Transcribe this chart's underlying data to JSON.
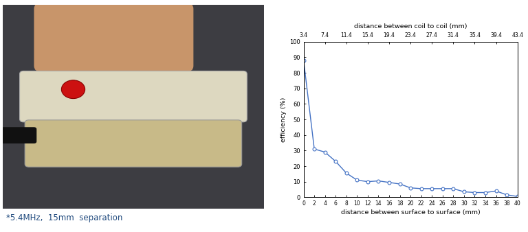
{
  "x_surface": [
    0,
    2,
    4,
    6,
    8,
    10,
    12,
    14,
    16,
    18,
    20,
    22,
    24,
    26,
    28,
    30,
    32,
    34,
    36,
    38,
    40
  ],
  "y_efficiency": [
    88,
    31,
    29,
    23,
    15.5,
    11,
    10,
    10.5,
    9.5,
    8.5,
    6,
    5.5,
    5.5,
    5.5,
    5.5,
    3.5,
    3,
    3,
    4,
    1.5,
    0.5
  ],
  "x_coil_labels": [
    3.4,
    7.4,
    11.4,
    15.4,
    19.4,
    23.4,
    27.4,
    31.4,
    35.4,
    39.4,
    43.4
  ],
  "line_color": "#4472C4",
  "marker": "o",
  "marker_size": 3.5,
  "xlabel_bottom": "distance between surface to surface (mm)",
  "xlabel_top": "distance between coil to coil (mm)",
  "ylabel": "efficiency (%)",
  "ylim": [
    0,
    100
  ],
  "xlim": [
    0,
    40
  ],
  "yticks": [
    0,
    10,
    20,
    30,
    40,
    50,
    60,
    70,
    80,
    90,
    100
  ],
  "xticks_bottom": [
    0,
    2,
    4,
    6,
    8,
    10,
    12,
    14,
    16,
    18,
    20,
    22,
    24,
    26,
    28,
    30,
    32,
    34,
    36,
    38,
    40
  ],
  "caption": "*5.4MHz,  15mm  separation",
  "caption_color": "#1F497D",
  "fig_width": 7.68,
  "fig_height": 3.38
}
